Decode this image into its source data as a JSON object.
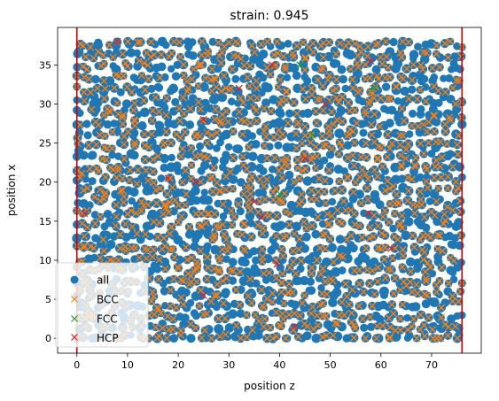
{
  "chart_data": {
    "type": "scatter",
    "title": "strain: 0.945",
    "xlabel": "position z",
    "ylabel": "position x",
    "xlim": [
      -3.8,
      79.8
    ],
    "ylim": [
      -1.9,
      39.8
    ],
    "xticks": [
      0,
      10,
      20,
      30,
      40,
      50,
      60,
      70
    ],
    "yticks": [
      0,
      5,
      10,
      15,
      20,
      25,
      30,
      35
    ],
    "grid": false,
    "legend_position": "lower-left",
    "vlines": [
      {
        "x": 0.0,
        "color": "#cc0000"
      },
      {
        "x": 76.0,
        "color": "#cc0000"
      }
    ],
    "lattice": {
      "x_min": 0,
      "x_max": 76,
      "x_step": 1.2,
      "y_min": 0,
      "y_max": 38,
      "y_step": 1.45
    },
    "series": [
      {
        "name": "all",
        "marker": "circle",
        "color": "#1f77b4",
        "note": "dense disordered cloud of ~1500 atoms over x 0–76, y 0–38"
      },
      {
        "name": "BCC",
        "marker": "x",
        "color": "#ff7f0e",
        "note": "majority of atoms classified BCC, spread across full region"
      },
      {
        "name": "FCC",
        "marker": "x",
        "color": "#2ca02c",
        "points": [
          [
            44.0,
            35.0
          ],
          [
            58.5,
            32.0
          ],
          [
            46.5,
            26.0
          ],
          [
            40.0,
            18.5
          ]
        ]
      },
      {
        "name": "HCP",
        "marker": "x",
        "color": "#d62728",
        "points": [
          [
            8.0,
            38.0
          ],
          [
            38.5,
            35.0
          ],
          [
            58.0,
            35.5
          ],
          [
            32.0,
            32.0
          ],
          [
            49.0,
            30.0
          ],
          [
            25.0,
            28.0
          ],
          [
            45.0,
            23.0
          ],
          [
            18.0,
            20.5
          ],
          [
            23.5,
            20.0
          ],
          [
            1.5,
            16.0
          ],
          [
            35.0,
            17.5
          ],
          [
            57.5,
            16.0
          ],
          [
            36.5,
            15.5
          ],
          [
            62.0,
            11.5
          ],
          [
            39.5,
            9.5
          ],
          [
            25.0,
            5.5
          ],
          [
            43.0,
            1.5
          ]
        ]
      }
    ]
  }
}
